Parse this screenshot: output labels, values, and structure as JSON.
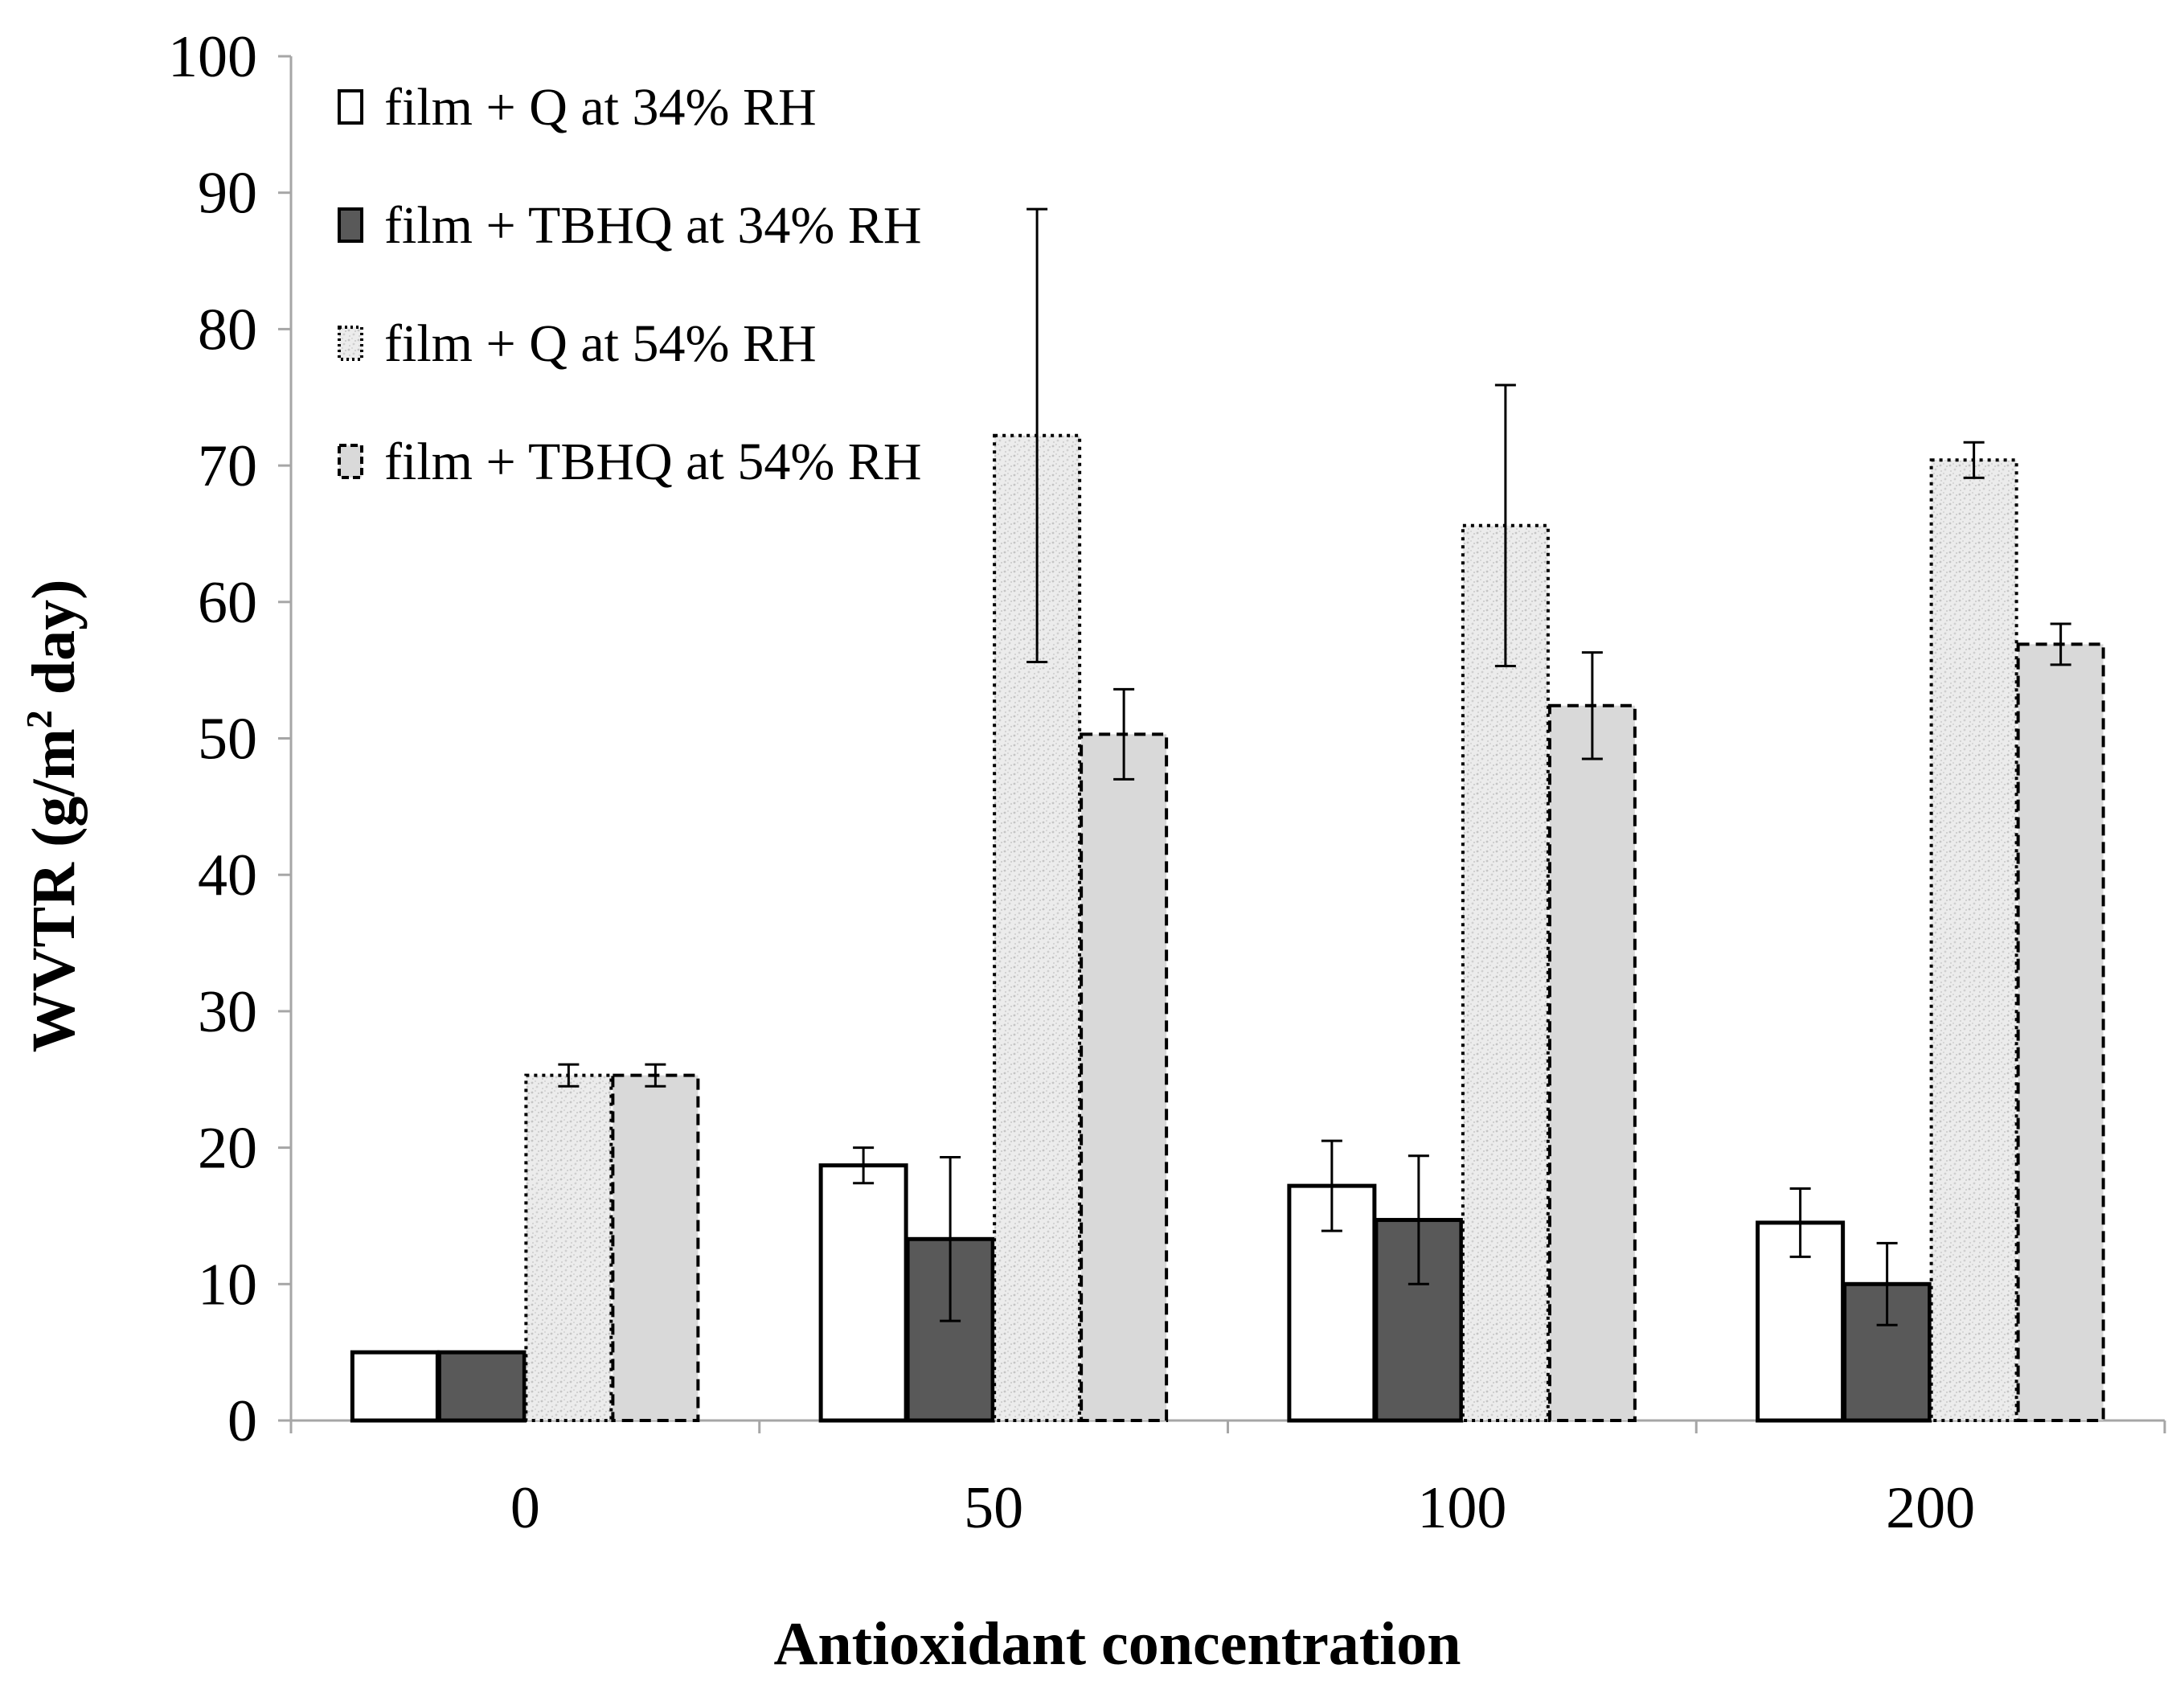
{
  "chart_data": {
    "type": "bar",
    "title": "",
    "xlabel": "Antioxidant concentration",
    "ylabel_main": "WVTR (g/m",
    "ylabel_sup": "2",
    "ylabel_end": " day)",
    "ylim": [
      0,
      100
    ],
    "ytick_step": 10,
    "yticks": [
      "0",
      "10",
      "20",
      "30",
      "40",
      "50",
      "60",
      "70",
      "80",
      "90",
      "100"
    ],
    "categories": [
      "0",
      "50",
      "100",
      "200"
    ],
    "series": [
      {
        "name": "film + Q at 34% RH",
        "style": "white-solid",
        "values": [
          5.0,
          18.7,
          17.2,
          14.5
        ],
        "errors": [
          0,
          1.3,
          3.3,
          2.5
        ]
      },
      {
        "name": "film + TBHQ at 34% RH",
        "style": "dark-solid",
        "values": [
          5.0,
          13.3,
          14.7,
          10.0
        ],
        "errors": [
          0,
          6.0,
          4.7,
          3.0
        ]
      },
      {
        "name": "film + Q at 54% RH",
        "style": "speckle-dotted",
        "values": [
          25.3,
          72.2,
          65.6,
          70.4
        ],
        "errors": [
          0.8,
          16.6,
          10.3,
          1.3
        ]
      },
      {
        "name": "film + TBHQ at 54% RH",
        "style": "gray-dashed",
        "values": [
          25.3,
          50.3,
          52.4,
          56.9
        ],
        "errors": [
          0.8,
          3.3,
          3.9,
          1.5
        ]
      }
    ],
    "legend_position": "top-left",
    "colors": {
      "white": "#ffffff",
      "dark": "#595959",
      "speckle": "#ececec",
      "gray": "#d9d9d9",
      "axis": "#a6a6a6"
    }
  }
}
